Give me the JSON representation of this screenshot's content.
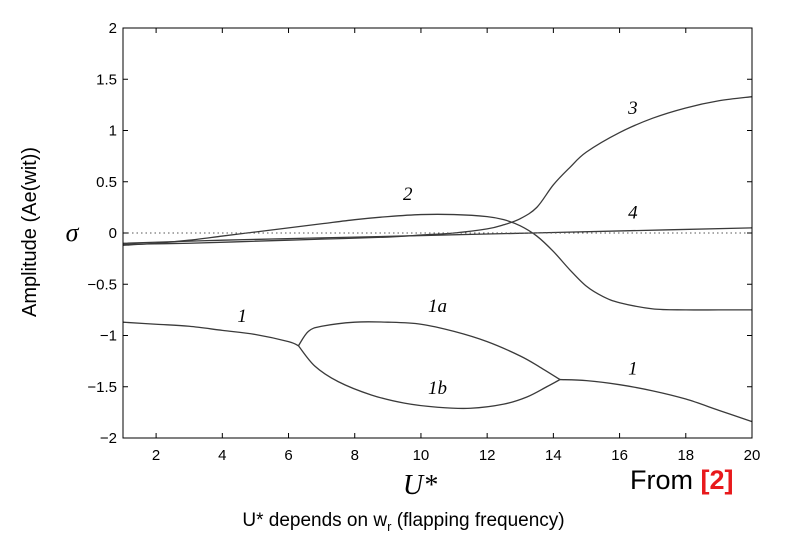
{
  "chart_data": {
    "type": "line",
    "xlabel": "U*",
    "ylabel": "σ",
    "xlim": [
      1,
      20
    ],
    "ylim": [
      -2,
      2
    ],
    "xticks": [
      2,
      4,
      6,
      8,
      10,
      12,
      14,
      16,
      18,
      20
    ],
    "yticks": [
      2,
      1.5,
      1,
      0.5,
      0,
      -0.5,
      -1,
      -1.5,
      -2
    ],
    "ytick_labels": [
      "2",
      "1.5",
      "1",
      "0.5",
      "0",
      "−0.5",
      "−1",
      "−1.5",
      "−2"
    ],
    "grid": false,
    "zero_line": "dotted",
    "series": [
      {
        "name": "1",
        "x": [
          1,
          2,
          3,
          4,
          5,
          6,
          6.3
        ],
        "y": [
          -0.87,
          -0.89,
          -0.91,
          -0.95,
          -0.99,
          -1.06,
          -1.1
        ]
      },
      {
        "name": "1a",
        "x": [
          6.3,
          6.6,
          7,
          8,
          9,
          10,
          11,
          12,
          13,
          13.6,
          14.2
        ],
        "y": [
          -1.1,
          -0.96,
          -0.91,
          -0.87,
          -0.87,
          -0.89,
          -0.96,
          -1.06,
          -1.2,
          -1.31,
          -1.43
        ]
      },
      {
        "name": "1b",
        "x": [
          6.3,
          6.8,
          7.5,
          8.5,
          9.5,
          10.5,
          11.5,
          12.5,
          13.2,
          13.8,
          14.2
        ],
        "y": [
          -1.1,
          -1.3,
          -1.45,
          -1.58,
          -1.66,
          -1.7,
          -1.71,
          -1.67,
          -1.6,
          -1.5,
          -1.43
        ]
      },
      {
        "name": "1",
        "x": [
          14.2,
          15,
          16,
          17,
          18,
          19,
          20
        ],
        "y": [
          -1.43,
          -1.44,
          -1.48,
          -1.54,
          -1.62,
          -1.73,
          -1.84
        ]
      },
      {
        "name": "2",
        "x": [
          1,
          2,
          3,
          4,
          5,
          6,
          7,
          8,
          9,
          10,
          11,
          12,
          12.5,
          13,
          13.5,
          14,
          14.5,
          15,
          15.5,
          16,
          17,
          18,
          19,
          20
        ],
        "y": [
          -0.12,
          -0.1,
          -0.07,
          -0.03,
          0.01,
          0.05,
          0.09,
          0.13,
          0.16,
          0.18,
          0.18,
          0.16,
          0.13,
          0.07,
          -0.03,
          -0.18,
          -0.36,
          -0.52,
          -0.62,
          -0.68,
          -0.74,
          -0.75,
          -0.75,
          -0.75
        ]
      },
      {
        "name": "3",
        "x": [
          1,
          3,
          5,
          7,
          9,
          10,
          11,
          12,
          12.5,
          13,
          13.5,
          14,
          14.5,
          15,
          16,
          17,
          18,
          19,
          20
        ],
        "y": [
          -0.11,
          -0.1,
          -0.08,
          -0.06,
          -0.04,
          -0.02,
          0.0,
          0.04,
          0.08,
          0.14,
          0.25,
          0.47,
          0.64,
          0.79,
          0.98,
          1.12,
          1.22,
          1.29,
          1.33
        ]
      },
      {
        "name": "4",
        "x": [
          1,
          4,
          8,
          12,
          16,
          20
        ],
        "y": [
          -0.1,
          -0.07,
          -0.04,
          -0.01,
          0.02,
          0.05
        ]
      }
    ],
    "curve_labels": [
      {
        "text": "1",
        "x": 4.6,
        "y": -0.87
      },
      {
        "text": "1a",
        "x": 10.5,
        "y": -0.77
      },
      {
        "text": "1b",
        "x": 10.5,
        "y": -1.57
      },
      {
        "text": "1",
        "x": 16.4,
        "y": -1.38
      },
      {
        "text": "2",
        "x": 9.6,
        "y": 0.32
      },
      {
        "text": "3",
        "x": 16.4,
        "y": 1.16
      },
      {
        "text": "4",
        "x": 16.4,
        "y": 0.14
      }
    ]
  },
  "outer_ylabel": "Amplitude (Ae(wit))",
  "source": {
    "prefix": "From ",
    "ref": "[2]"
  },
  "caption": {
    "main": "U* depends on w",
    "sub": "r",
    "rest": " (flapping frequency)"
  }
}
